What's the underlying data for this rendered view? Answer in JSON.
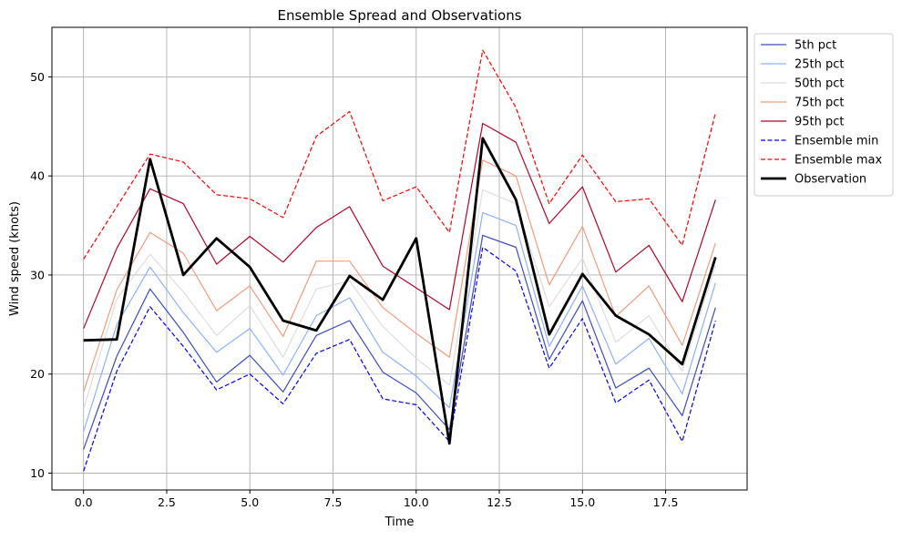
{
  "chart_data": {
    "type": "line",
    "title": "Ensemble Spread and Observations",
    "xlabel": "Time",
    "ylabel": "Wind speed (knots)",
    "xlim": [
      -0.95,
      19.95
    ],
    "ylim": [
      8.3,
      55
    ],
    "xticks": [
      0.0,
      2.5,
      5.0,
      7.5,
      10.0,
      12.5,
      15.0,
      17.5
    ],
    "xtick_labels": [
      "0.0",
      "2.5",
      "5.0",
      "7.5",
      "10.0",
      "12.5",
      "15.0",
      "17.5"
    ],
    "yticks": [
      10,
      20,
      30,
      40,
      50
    ],
    "ytick_labels": [
      "10",
      "20",
      "30",
      "40",
      "50"
    ],
    "grid": true,
    "legend_position": "upper-right-outside",
    "x": [
      0,
      1,
      2,
      3,
      4,
      5,
      6,
      7,
      8,
      9,
      10,
      11,
      12,
      13,
      14,
      15,
      16,
      17,
      18,
      19
    ],
    "series": [
      {
        "name": "5th pct",
        "color": "#3b4cc0",
        "dash": "solid",
        "width": "thin",
        "values": [
          12.4,
          21.8,
          28.6,
          24.2,
          19.2,
          21.9,
          18.2,
          23.9,
          25.4,
          20.2,
          18.1,
          14.4,
          34.0,
          32.8,
          21.5,
          27.4,
          18.6,
          20.6,
          15.8,
          26.7
        ]
      },
      {
        "name": "25th pct",
        "color": "#8db0fe",
        "dash": "solid",
        "width": "thin",
        "values": [
          14.2,
          25.0,
          30.8,
          26.2,
          22.2,
          24.6,
          19.9,
          25.9,
          27.7,
          22.2,
          19.8,
          16.6,
          36.3,
          35.0,
          22.8,
          28.9,
          21.0,
          23.6,
          18.0,
          29.2
        ]
      },
      {
        "name": "50th pct",
        "color": "#dddddd",
        "dash": "solid",
        "width": "thin",
        "values": [
          16.5,
          27.6,
          32.1,
          28.3,
          23.9,
          26.9,
          21.7,
          28.6,
          29.4,
          24.8,
          21.6,
          18.9,
          38.6,
          37.2,
          26.8,
          31.7,
          23.2,
          25.9,
          20.3,
          31.0
        ]
      },
      {
        "name": "75th pct",
        "color": "#f49a7b",
        "dash": "solid",
        "width": "thin",
        "values": [
          18.2,
          28.5,
          34.3,
          32.2,
          26.4,
          28.9,
          23.8,
          31.4,
          31.4,
          26.7,
          24.1,
          21.7,
          41.6,
          40.0,
          29.0,
          34.9,
          25.8,
          28.9,
          22.9,
          33.2
        ]
      },
      {
        "name": "95th pct",
        "color": "#b40426",
        "dash": "solid",
        "width": "thin",
        "values": [
          24.6,
          32.7,
          38.7,
          37.2,
          31.1,
          33.9,
          31.3,
          34.8,
          36.9,
          30.9,
          28.7,
          26.5,
          45.3,
          43.4,
          35.2,
          38.9,
          30.3,
          33.0,
          27.3,
          37.6
        ]
      },
      {
        "name": "Ensemble min",
        "color": "#0000ff",
        "dash": "dashed",
        "width": "thin",
        "values": [
          10.2,
          20.3,
          26.8,
          22.8,
          18.4,
          20.0,
          17.0,
          22.1,
          23.5,
          17.5,
          16.9,
          13.2,
          32.8,
          30.4,
          20.6,
          25.6,
          17.1,
          19.4,
          13.2,
          25.4
        ]
      },
      {
        "name": "Ensemble max",
        "color": "#ff0000",
        "dash": "dashed",
        "width": "thin",
        "values": [
          31.6,
          36.9,
          42.2,
          41.4,
          38.1,
          37.7,
          35.8,
          44.0,
          46.5,
          37.5,
          38.9,
          34.3,
          52.7,
          46.9,
          37.2,
          42.1,
          37.4,
          37.7,
          33.0,
          46.4
        ]
      },
      {
        "name": "Observation",
        "color": "#000000",
        "dash": "solid",
        "width": "thick",
        "values": [
          23.4,
          23.5,
          41.7,
          30.0,
          33.7,
          30.8,
          25.4,
          24.4,
          29.9,
          27.5,
          33.7,
          13.0,
          43.8,
          37.6,
          24.0,
          30.1,
          25.9,
          24.0,
          21.0,
          31.8
        ]
      }
    ]
  }
}
